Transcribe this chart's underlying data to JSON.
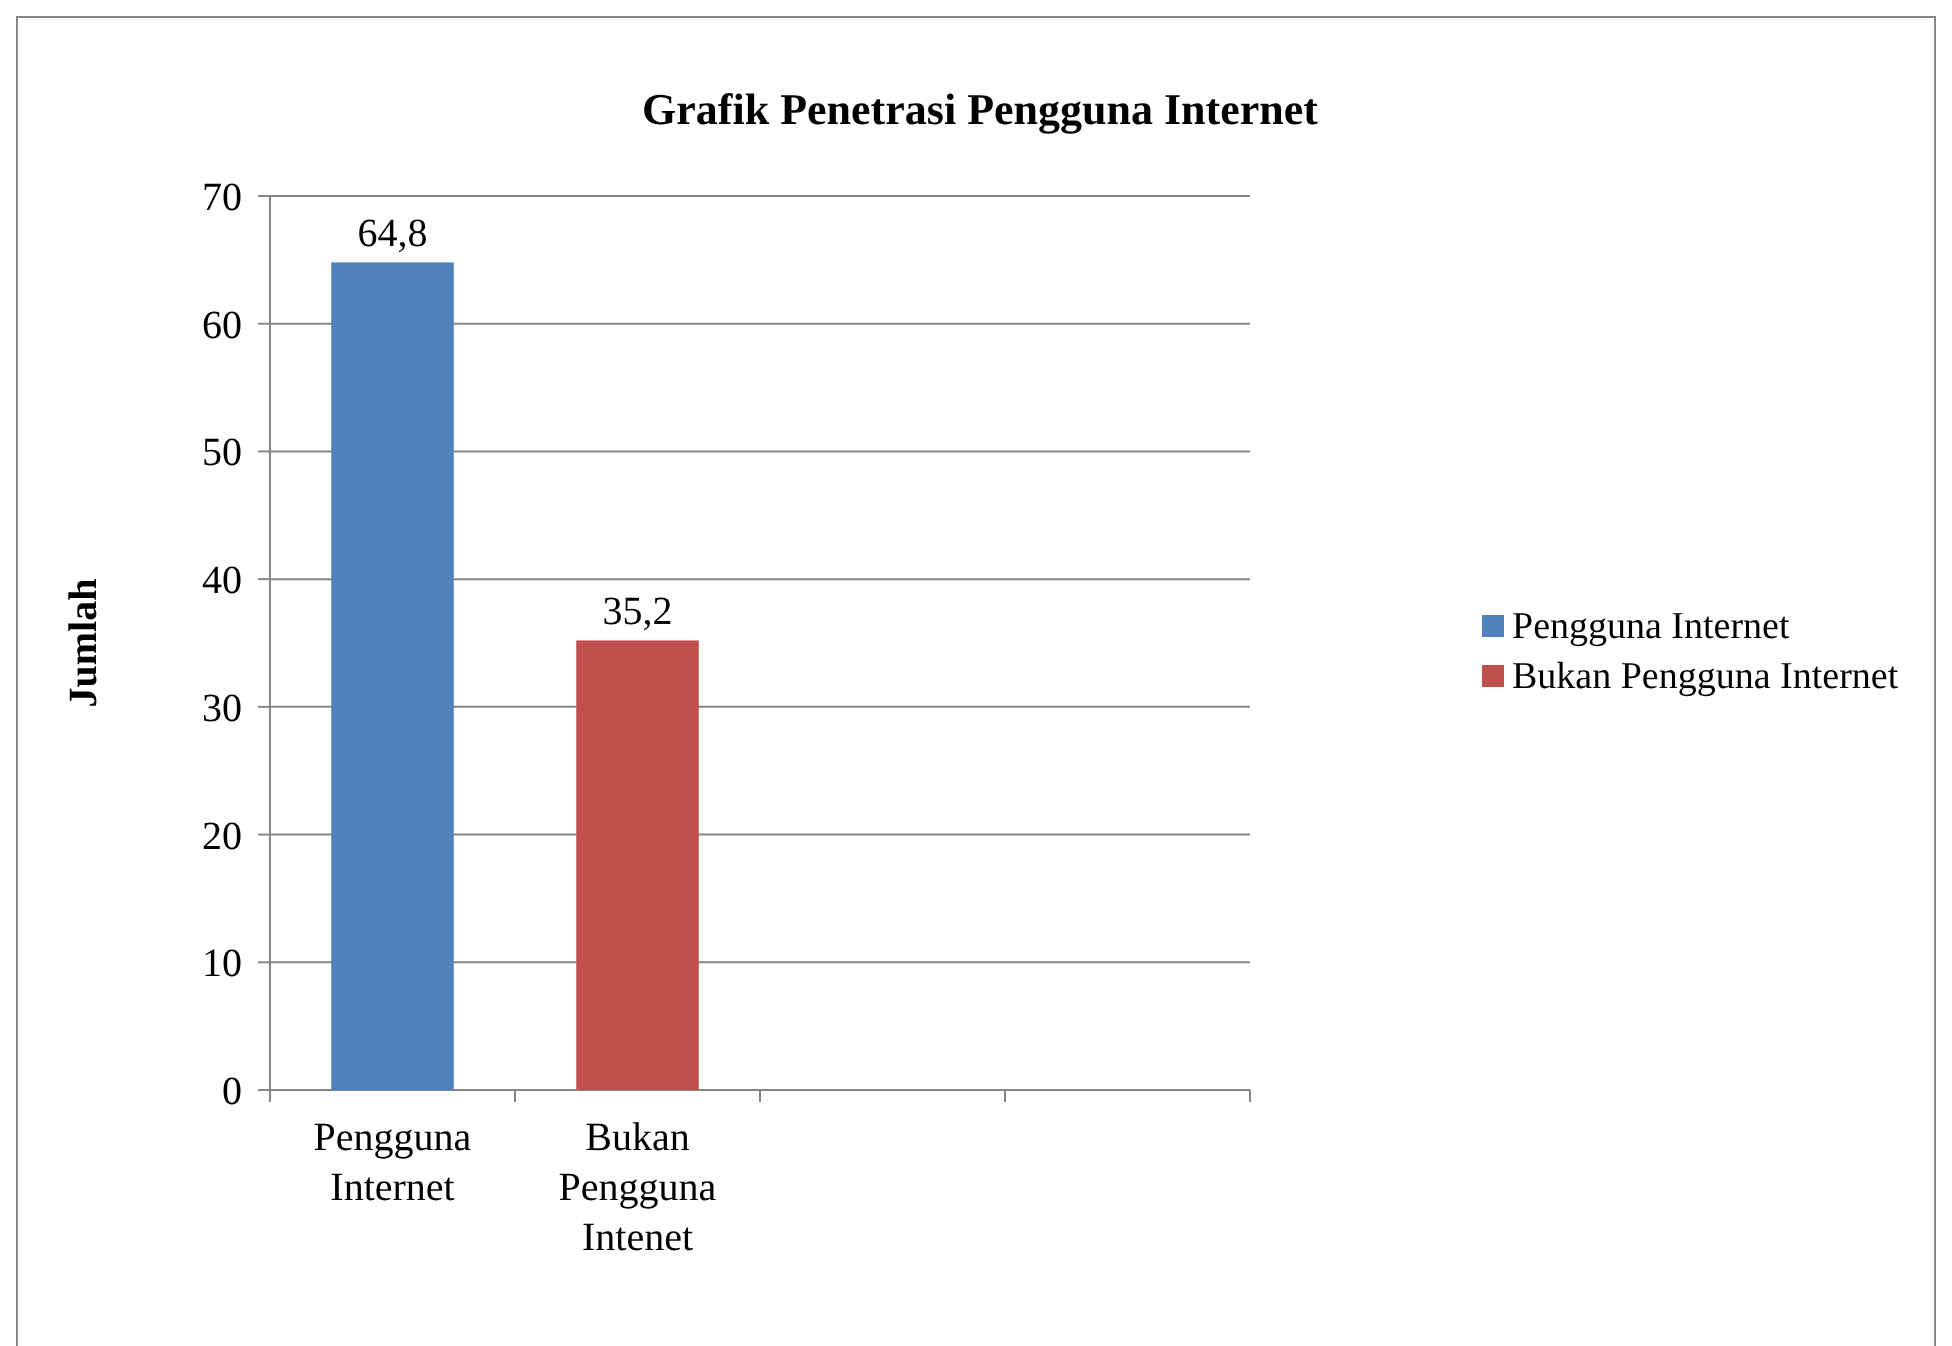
{
  "chart_data": {
    "type": "bar",
    "title": "Grafik Penetrasi Pengguna Internet",
    "ylabel": "Jumlah",
    "categories": [
      "Pengguna Internet",
      "Bukan Pengguna Intenet",
      null,
      null
    ],
    "series": [
      {
        "name": "Pengguna Internet",
        "color": "#4f81bd",
        "values": [
          64.8,
          null,
          null,
          null
        ],
        "value_labels": [
          "64,8",
          null,
          null,
          null
        ]
      },
      {
        "name": "Bukan Pengguna Internet",
        "color": "#c0504d",
        "values": [
          null,
          35.2,
          null,
          null
        ],
        "value_labels": [
          null,
          "35,2",
          null,
          null
        ]
      }
    ],
    "ylim": [
      0,
      70
    ],
    "yticks": [
      0,
      10,
      20,
      30,
      40,
      50,
      60,
      70
    ],
    "grid": "y",
    "legend": "right"
  }
}
